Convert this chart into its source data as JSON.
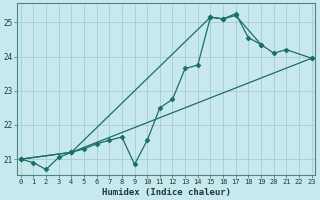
{
  "xlabel": "Humidex (Indice chaleur)",
  "background_color": "#c8e8f0",
  "grid_color": "#b0d8e0",
  "line_color": "#1a7060",
  "xlim": [
    -0.3,
    23.3
  ],
  "ylim": [
    20.55,
    25.55
  ],
  "yticks": [
    21,
    22,
    23,
    24,
    25
  ],
  "xticks": [
    0,
    1,
    2,
    3,
    4,
    5,
    6,
    7,
    8,
    9,
    10,
    11,
    12,
    13,
    14,
    15,
    16,
    17,
    18,
    19,
    20,
    21,
    22,
    23
  ],
  "line1_x": [
    0,
    1,
    2,
    3,
    4,
    5,
    6,
    7,
    8,
    9,
    10,
    11,
    12,
    13,
    14,
    15,
    16,
    17,
    18,
    19
  ],
  "line1_y": [
    21.0,
    20.9,
    20.7,
    21.05,
    21.2,
    21.3,
    21.45,
    21.55,
    21.65,
    20.85,
    21.55,
    22.5,
    22.75,
    23.65,
    23.75,
    25.15,
    25.1,
    25.25,
    24.55,
    24.35
  ],
  "line2_x": [
    0,
    4,
    23
  ],
  "line2_y": [
    21.0,
    21.2,
    23.95
  ],
  "line3_x": [
    0,
    4,
    15,
    16,
    17,
    19,
    20,
    21,
    23
  ],
  "line3_y": [
    21.0,
    21.2,
    25.15,
    25.1,
    25.2,
    24.35,
    24.1,
    24.2,
    23.95
  ]
}
